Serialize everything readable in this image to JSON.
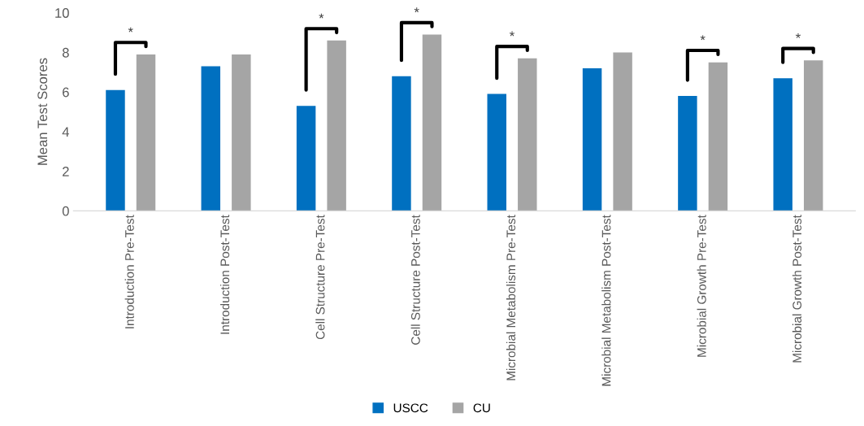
{
  "chart_data": {
    "type": "bar",
    "ylabel": "Mean Test Scores",
    "categories": [
      "Introduction Pre-Test",
      "Introduction Post-Test",
      "Cell Structure Pre-Test",
      "Cell Structure Post-Test",
      "Microbial Metabolism Pre-Test",
      "Microbial Metabolism Post-Test",
      "Microbial Growth Pre-Test",
      "Microbial Growth Post-Test"
    ],
    "series": [
      {
        "name": "USCC",
        "color": "#0070c0",
        "values": [
          6.1,
          7.3,
          5.3,
          6.8,
          5.9,
          7.2,
          5.8,
          6.7
        ]
      },
      {
        "name": "CU",
        "color": "#a5a5a5",
        "values": [
          7.9,
          7.9,
          8.6,
          8.9,
          7.7,
          8.0,
          7.5,
          7.6
        ]
      }
    ],
    "ylim": [
      0,
      10
    ],
    "yticks": [
      0,
      2,
      4,
      6,
      8,
      10
    ],
    "grid": false,
    "legend": "bottom",
    "annotations": [
      "*",
      null,
      "*",
      "*",
      "*",
      null,
      "*",
      "*"
    ]
  }
}
